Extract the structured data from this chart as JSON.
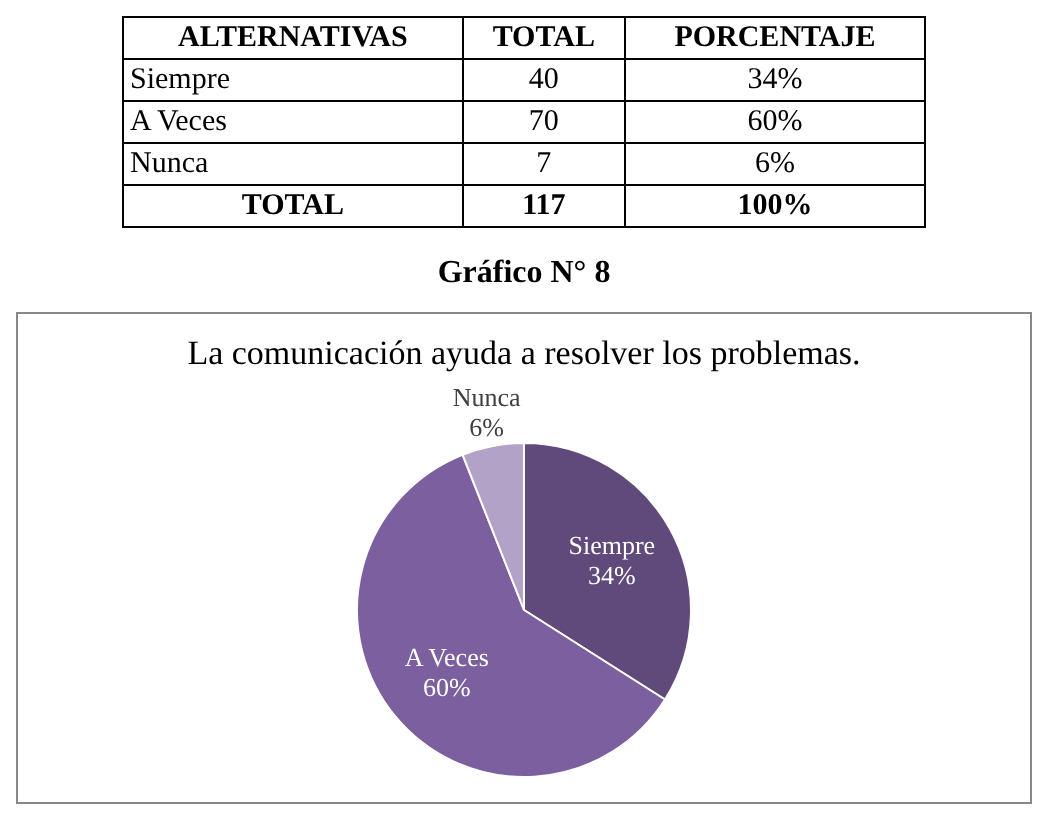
{
  "chart_data": [
    {
      "type": "other",
      "annotations": [
        "ALTERNATIVAS",
        "TOTAL",
        "PORCENTAJE",
        "Siempre",
        "40",
        "34%",
        "A Veces",
        "70",
        "60%",
        "Nunca",
        "7",
        "6%",
        "TOTAL",
        "117",
        "100%"
      ]
    },
    {
      "type": "pie",
      "title": "La comunicación ayuda a resolver los problemas.",
      "annotations": [
        "Gráfico N° 8"
      ],
      "categories": [
        "Siempre",
        "A Veces",
        "Nunca"
      ],
      "values": [
        34,
        60,
        6
      ],
      "value_labels": [
        "34%",
        "60%",
        "6%"
      ],
      "colors": [
        "#604a7b",
        "#7b5f9e",
        "#b3a2c7"
      ]
    }
  ]
}
